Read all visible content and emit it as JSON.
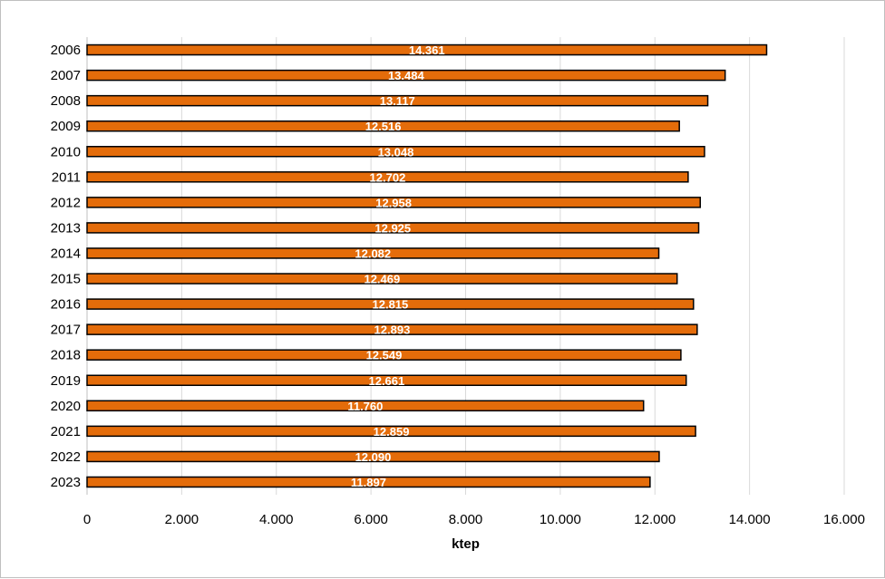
{
  "chart_data": {
    "type": "bar",
    "orientation": "horizontal",
    "title": "",
    "xlabel": "ktep",
    "ylabel": "",
    "xlim": [
      0,
      16000
    ],
    "x_ticks": [
      0,
      2000,
      4000,
      6000,
      8000,
      10000,
      12000,
      14000,
      16000
    ],
    "x_tick_labels": [
      "0",
      "2.000",
      "4.000",
      "6.000",
      "8.000",
      "10.000",
      "12.000",
      "14.000",
      "16.000"
    ],
    "grid": "vertical",
    "legend": "none",
    "categories": [
      "2006",
      "2007",
      "2008",
      "2009",
      "2010",
      "2011",
      "2012",
      "2013",
      "2014",
      "2015",
      "2016",
      "2017",
      "2018",
      "2019",
      "2020",
      "2021",
      "2022",
      "2023"
    ],
    "values": [
      14361,
      13484,
      13117,
      12516,
      13048,
      12702,
      12958,
      12925,
      12082,
      12469,
      12815,
      12893,
      12549,
      12661,
      11760,
      12859,
      12090,
      11897
    ],
    "data_labels": [
      "14.361",
      "13.484",
      "13.117",
      "12.516",
      "13.048",
      "12.702",
      "12.958",
      "12.925",
      "12.082",
      "12.469",
      "12.815",
      "12.893",
      "12.549",
      "12.661",
      "11.760",
      "12.859",
      "12.090",
      "11.897"
    ],
    "colors": {
      "bar_fill": "#E46C0A",
      "bar_stroke": "#000000",
      "grid": "#d9d9d9",
      "data_label": "#ffffff"
    }
  }
}
